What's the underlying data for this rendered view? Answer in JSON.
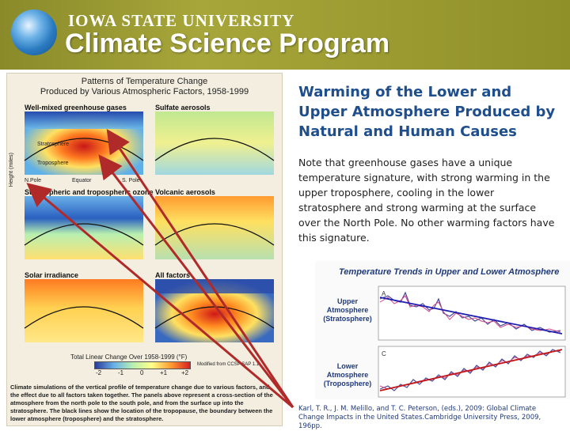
{
  "header": {
    "university": "IOWA STATE UNIVERSITY",
    "program": "Climate Science Program"
  },
  "figure": {
    "title_line1": "Patterns of Temperature Change",
    "title_line2": "Produced by Various Atmospheric Factors, 1958-1999",
    "panels": [
      {
        "label": "Well-mixed greenhouse gases"
      },
      {
        "label": "Sulfate aerosols"
      },
      {
        "label": "Stratospheric and tropospheric ozone"
      },
      {
        "label": "Volcanic aerosols"
      },
      {
        "label": "Solar irradiance"
      },
      {
        "label": "All factors"
      }
    ],
    "stratosphere": "Stratosphere",
    "troposphere": "Troposphere",
    "y_axis": "Height (miles)",
    "x_ticks": [
      "N.Pole",
      "Equator",
      "S. Pole"
    ],
    "y_ticks": [
      "17.5",
      "15",
      "12.5",
      "10",
      "7.5",
      "5",
      "2.5"
    ],
    "colorbar_label": "Total Linear Change Over 1958-1999 (°F)",
    "colorbar_ticks": [
      "-2",
      "-1",
      "0",
      "+1",
      "+2"
    ],
    "modified": "Modified from CCSP SAP 1.1",
    "caption": "Climate simulations of the vertical profile of temperature change due to various factors, and the effect due to all factors taken together. The panels above represent a cross-section of the atmosphere from the north pole to the south pole, and from the surface up into the stratosphere. The black lines show the location of the tropopause, the boundary between the lower atmosphere (troposphere) and the stratosphere."
  },
  "main": {
    "title": "Warming of the Lower and Upper Atmosphere Produced by Natural and Human Causes",
    "note": "Note that greenhouse gases have a unique temperature signature, with strong warming in the upper troposphere, cooling in the lower stratosphere and strong warming at the surface over the North Pole.  No other warming factors have this signature."
  },
  "trend": {
    "title": "Temperature Trends in Upper and Lower Atmosphere",
    "upper_label": [
      "Upper",
      "Atmosphere",
      "(Stratosphere)"
    ],
    "lower_label": [
      "Lower",
      "Atmosphere",
      "(Troposphere)"
    ],
    "panel_a": "A",
    "panel_c": "C"
  },
  "citation": "Karl, T. R., J. M. Melillo, and T. C. Peterson, (eds.), 2009: Global Climate Change Impacts in the United States.Cambridge University Press, 2009, 196pp.",
  "colors": {
    "title": "#1f4e8c",
    "arrow": "#b02a2a",
    "header": "#9a9a30"
  }
}
